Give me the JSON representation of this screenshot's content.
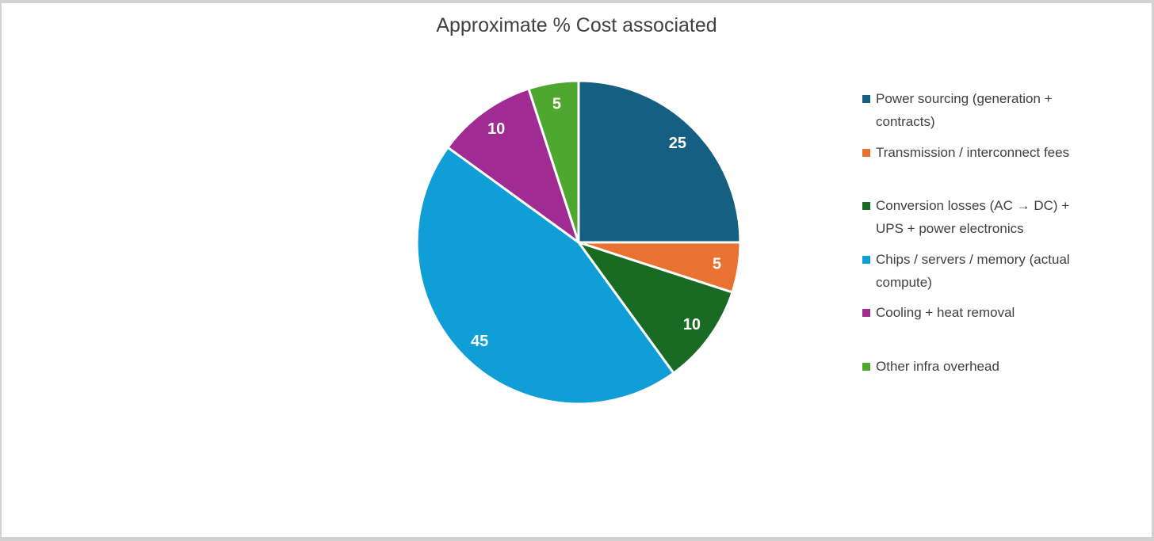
{
  "chart": {
    "title": "Approximate % Cost associated"
  },
  "chart_data": {
    "type": "pie",
    "title": "Approximate % Cost associated",
    "categories": [
      "Power sourcing (generation + contracts)",
      "Transmission / interconnect fees",
      "Conversion losses (AC → DC) + UPS + power electronics",
      "Chips / servers / memory (actual compute)",
      "Cooling + heat removal",
      "Other infra overhead"
    ],
    "values": [
      25,
      5,
      10,
      45,
      10,
      5
    ],
    "data_labels": [
      "25",
      "5",
      "10",
      "45",
      "10",
      "5"
    ],
    "colors": [
      "#156082",
      "#E97132",
      "#196B24",
      "#0F9ED5",
      "#A02B93",
      "#4EA72E"
    ],
    "title_color": "#404040",
    "label_color": "#ffffff",
    "slice_border_color": "#ffffff",
    "start_angle_deg": 0,
    "direction": "clockwise",
    "legend_position": "right",
    "total": 100
  }
}
